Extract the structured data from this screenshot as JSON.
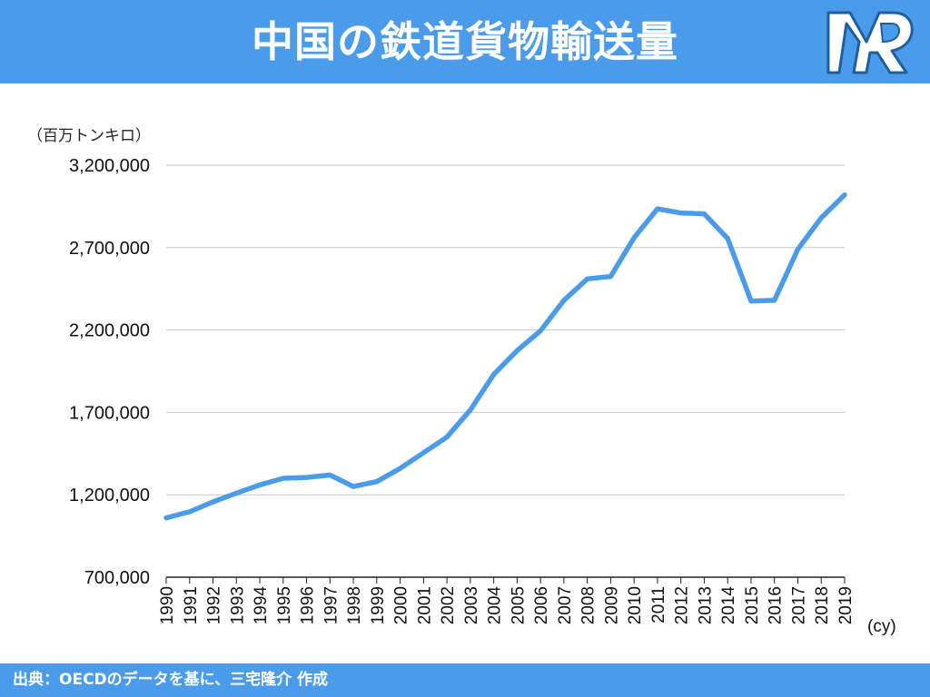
{
  "header": {
    "title": "中国の鉄道貨物輸送量",
    "logo_icon": "mr-logo-icon"
  },
  "footer": {
    "source": "出典：OECDのデータを基に、三宅隆介 作成"
  },
  "colors": {
    "header_bg": "#4a9bea",
    "line": "#4a9bea",
    "grid": "#c8c8c8"
  },
  "chart_data": {
    "type": "line",
    "ylabel": "（百万トンキロ）",
    "xlabel": "(cy)",
    "ylim": [
      700000,
      3200000
    ],
    "y_ticks": [
      "3,200,000",
      "2,700,000",
      "2,200,000",
      "1,700,000",
      "1,200,000",
      "700,000"
    ],
    "y_tick_values": [
      3200000,
      2700000,
      2200000,
      1700000,
      1200000,
      700000
    ],
    "grid": true,
    "x": [
      "1990",
      "1991",
      "1992",
      "1993",
      "1994",
      "1995",
      "1996",
      "1997",
      "1998",
      "1999",
      "2000",
      "2001",
      "2002",
      "2003",
      "2004",
      "2005",
      "2006",
      "2007",
      "2008",
      "2009",
      "2010",
      "2011",
      "2012",
      "2013",
      "2014",
      "2015",
      "2016",
      "2017",
      "2018",
      "2019"
    ],
    "series": [
      {
        "values": [
          1060000,
          1097000,
          1157000,
          1210000,
          1260000,
          1300000,
          1305000,
          1320000,
          1250000,
          1280000,
          1360000,
          1455000,
          1550000,
          1715000,
          1930000,
          2075000,
          2195000,
          2380000,
          2510000,
          2525000,
          2760000,
          2935000,
          2910000,
          2905000,
          2755000,
          2375000,
          2380000,
          2690000,
          2880000,
          3020000
        ]
      }
    ]
  }
}
